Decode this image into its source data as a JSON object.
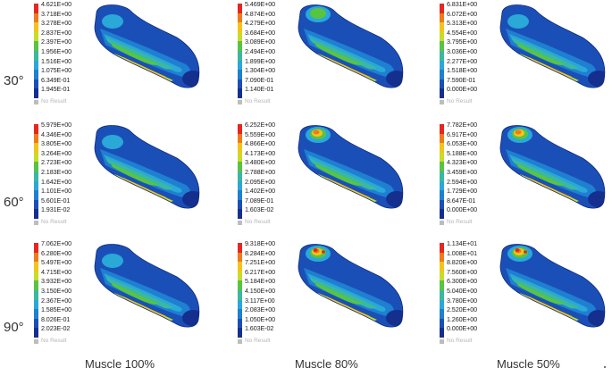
{
  "row_labels": [
    "30°",
    "60°",
    "90°"
  ],
  "column_labels": [
    "Muscle 100%",
    "Muscle 80%",
    "Muscle 50%"
  ],
  "no_result_label": "No Result",
  "legend_colors": [
    "#e8261f",
    "#f07a1c",
    "#f3c41a",
    "#c8dc28",
    "#58c440",
    "#3ab8a0",
    "#2aa8d8",
    "#1f7fd0",
    "#1b4fb8",
    "#152f8f"
  ],
  "panels": [
    {
      "row": 0,
      "col": 0,
      "values": [
        "4.621E+00",
        "3.718E+00",
        "3.278E+00",
        "2.837E+00",
        "2.397E+00",
        "1.956E+00",
        "1.516E+00",
        "1.075E+00",
        "6.349E-01",
        "1.945E-01"
      ],
      "hotspot": "none"
    },
    {
      "row": 0,
      "col": 1,
      "values": [
        "5.469E+00",
        "4.874E+00",
        "4.279E+00",
        "3.684E+00",
        "3.089E+00",
        "2.494E+00",
        "1.899E+00",
        "1.304E+00",
        "7.090E-01",
        "1.140E-01"
      ],
      "hotspot": "weak"
    },
    {
      "row": 0,
      "col": 2,
      "values": [
        "6.831E+00",
        "6.072E+00",
        "5.313E+00",
        "4.554E+00",
        "3.795E+00",
        "3.036E+00",
        "2.277E+00",
        "1.518E+00",
        "7.590E-01",
        "0.000E+00"
      ],
      "hotspot": "none"
    },
    {
      "row": 1,
      "col": 0,
      "values": [
        "5.979E+00",
        "4.346E+00",
        "3.805E+00",
        "3.264E+00",
        "2.723E+00",
        "2.183E+00",
        "1.642E+00",
        "1.101E+00",
        "5.601E-01",
        "1.931E-02"
      ],
      "hotspot": "none"
    },
    {
      "row": 1,
      "col": 1,
      "values": [
        "6.252E+00",
        "5.559E+00",
        "4.866E+00",
        "4.173E+00",
        "3.480E+00",
        "2.788E+00",
        "2.095E+00",
        "1.402E+00",
        "7.089E-01",
        "1.603E-02"
      ],
      "hotspot": "medium"
    },
    {
      "row": 1,
      "col": 2,
      "values": [
        "7.782E+00",
        "6.917E+00",
        "6.053E+00",
        "5.188E+00",
        "4.323E+00",
        "3.459E+00",
        "2.594E+00",
        "1.729E+00",
        "8.647E-01",
        "0.000E+00"
      ],
      "hotspot": "medium"
    },
    {
      "row": 2,
      "col": 0,
      "values": [
        "7.062E+00",
        "6.280E+00",
        "5.497E+00",
        "4.715E+00",
        "3.932E+00",
        "3.150E+00",
        "2.367E+00",
        "1.585E+00",
        "8.026E-01",
        "2.023E-02"
      ],
      "hotspot": "none"
    },
    {
      "row": 2,
      "col": 1,
      "values": [
        "9.318E+00",
        "8.284E+00",
        "7.251E+00",
        "6.217E+00",
        "5.184E+00",
        "4.150E+00",
        "3.117E+00",
        "2.083E+00",
        "1.050E+00",
        "1.603E-02"
      ],
      "hotspot": "strong"
    },
    {
      "row": 2,
      "col": 2,
      "values": [
        "1.134E+01",
        "1.008E+01",
        "8.820E+00",
        "7.560E+00",
        "6.300E+00",
        "5.040E+00",
        "3.780E+00",
        "2.520E+00",
        "1.260E+00",
        "0.000E+00"
      ],
      "hotspot": "strong"
    }
  ]
}
